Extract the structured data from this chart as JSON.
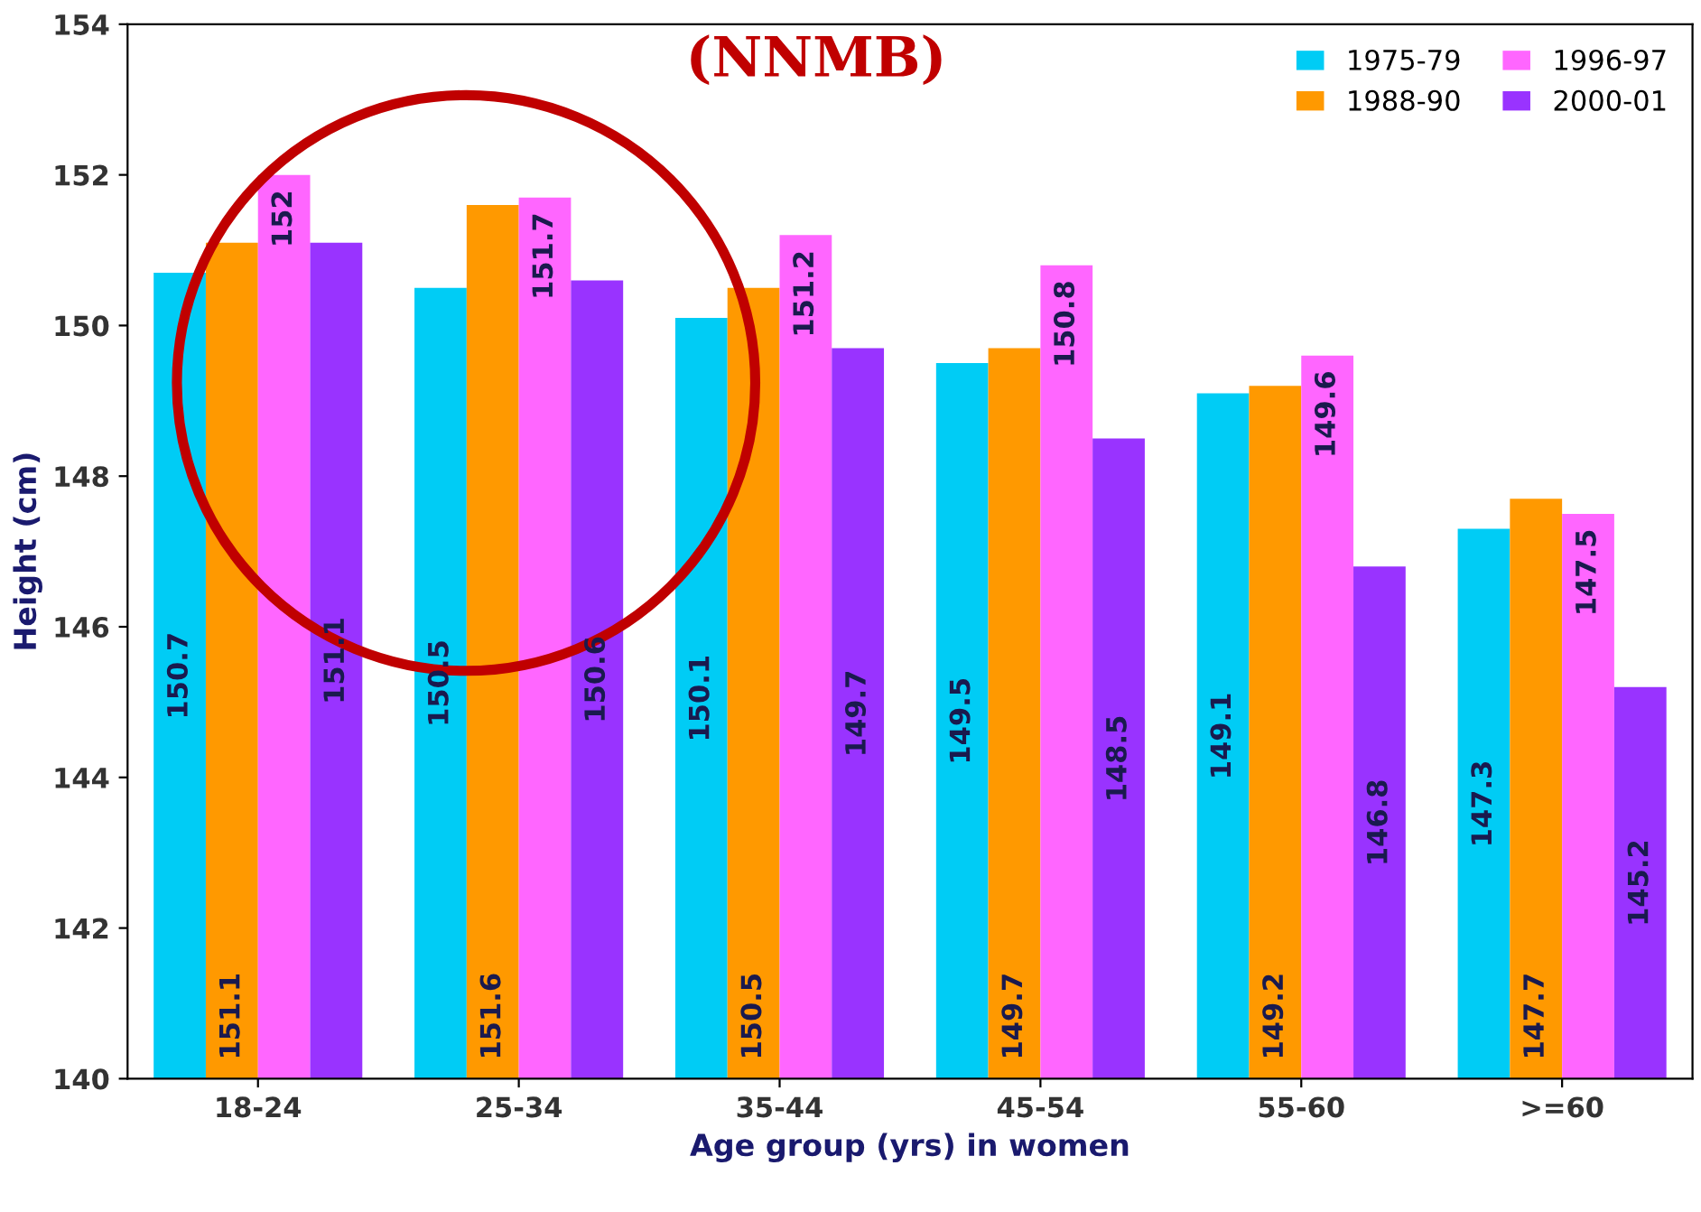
{
  "chart_data": {
    "type": "bar",
    "title": "(NNMB)",
    "xlabel": "Age group (yrs) in women",
    "ylabel": "Height (cm)",
    "categories": [
      "18-24",
      "25-34",
      "35-44",
      "45-54",
      "55-60",
      ">=60"
    ],
    "series": [
      {
        "name": "1975-79",
        "color": "#00ccf5",
        "values": [
          150.7,
          150.5,
          150.1,
          149.5,
          149.1,
          147.3
        ]
      },
      {
        "name": "1988-90",
        "color": "#ff9900",
        "values": [
          151.1,
          151.6,
          150.5,
          149.7,
          149.2,
          147.7
        ]
      },
      {
        "name": "1996-97",
        "color": "#ff66ff",
        "values": [
          152,
          151.7,
          151.2,
          150.8,
          149.6,
          147.5
        ]
      },
      {
        "name": "2000-01",
        "color": "#9933ff",
        "values": [
          151.1,
          150.6,
          149.7,
          148.5,
          146.8,
          145.2
        ]
      }
    ],
    "ylim": [
      140,
      154
    ],
    "yticks": [
      140,
      142,
      144,
      146,
      148,
      150,
      152,
      154
    ],
    "grid": false,
    "legend": "top right",
    "data_labels": true
  }
}
